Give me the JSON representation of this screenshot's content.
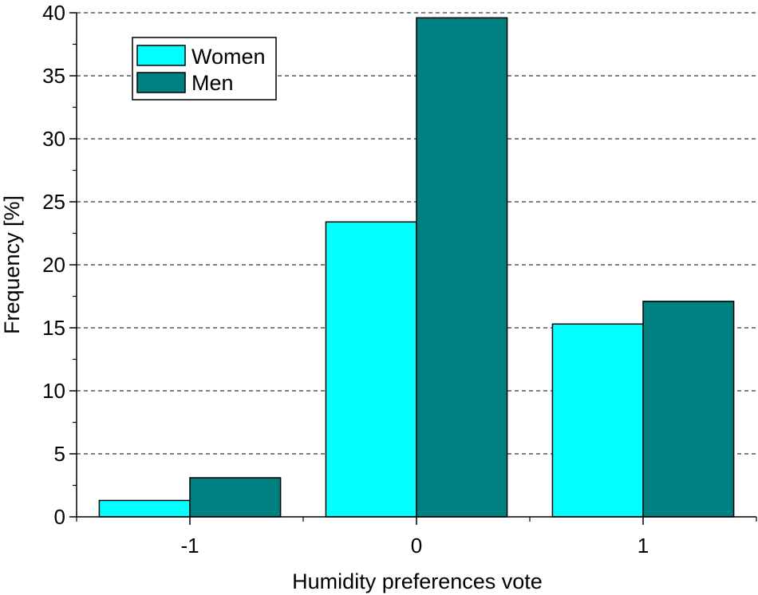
{
  "chart_data": {
    "type": "bar",
    "categories": [
      "-1",
      "0",
      "1"
    ],
    "series": [
      {
        "name": "Women",
        "values": [
          1.3,
          23.4,
          15.3
        ],
        "color": "#00ffff"
      },
      {
        "name": "Men",
        "values": [
          3.1,
          39.6,
          17.1
        ],
        "color": "#008080"
      }
    ],
    "xlabel": "Humidity preferences vote",
    "ylabel": "Frequency [%]",
    "ylim": [
      0,
      40
    ],
    "yticks": [
      "0",
      "5",
      "10",
      "15",
      "20",
      "25",
      "30",
      "35",
      "40"
    ],
    "grid": "horizontal dashed",
    "legend_position": "top-left"
  }
}
